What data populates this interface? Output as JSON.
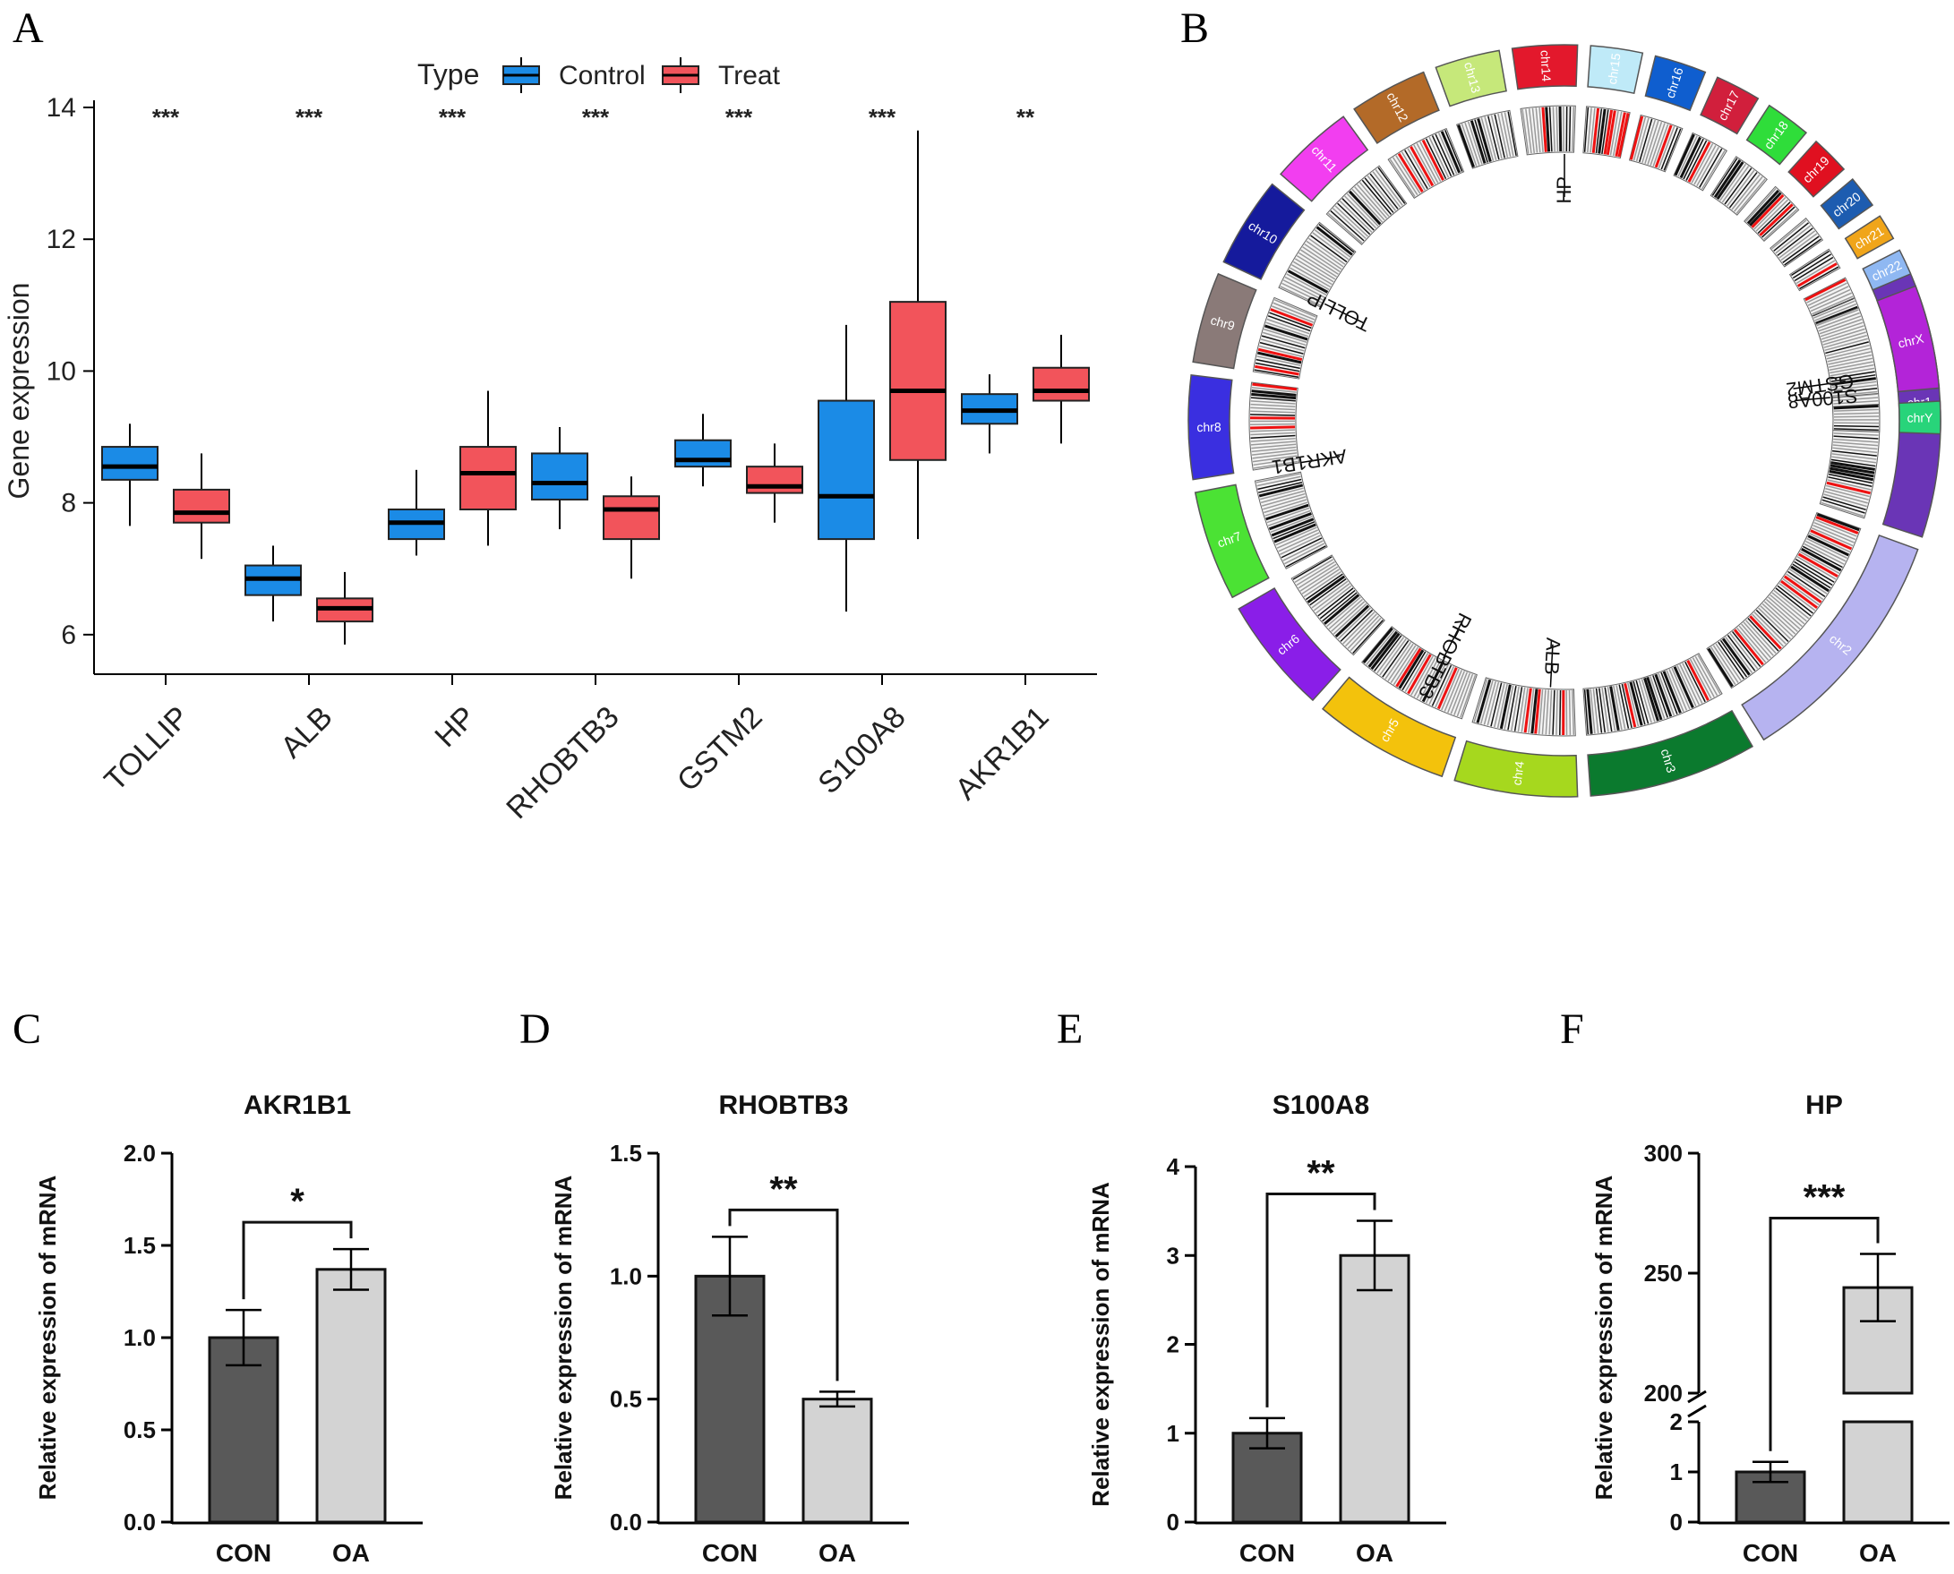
{
  "panel_labels": {
    "a": "A",
    "b": "B",
    "c": "C",
    "d": "D",
    "e": "E",
    "f": "F"
  },
  "chart_data": [
    {
      "id": "A",
      "type": "box",
      "ylabel": "Gene expression",
      "ylim": [
        5.4,
        14
      ],
      "yticks": [
        6,
        8,
        10,
        12,
        14
      ],
      "legend": {
        "title": "Type",
        "position": "top-center",
        "entries": [
          {
            "name": "Control",
            "color": "#1b8be6"
          },
          {
            "name": "Treat",
            "color": "#f2545b"
          }
        ]
      },
      "categories": [
        "TOLLIP",
        "ALB",
        "HP",
        "RHOBTB3",
        "GSTM2",
        "S100A8",
        "AKR1B1"
      ],
      "significance": [
        "***",
        "***",
        "***",
        "***",
        "***",
        "***",
        "**"
      ],
      "series": [
        {
          "name": "Control",
          "color": "#1b8be6",
          "boxes": [
            {
              "min": 7.65,
              "q1": 8.35,
              "median": 8.55,
              "q3": 8.85,
              "max": 9.2
            },
            {
              "min": 6.2,
              "q1": 6.6,
              "median": 6.85,
              "q3": 7.05,
              "max": 7.35
            },
            {
              "min": 7.2,
              "q1": 7.45,
              "median": 7.7,
              "q3": 7.9,
              "max": 8.5
            },
            {
              "min": 7.6,
              "q1": 8.05,
              "median": 8.3,
              "q3": 8.75,
              "max": 9.15
            },
            {
              "min": 8.25,
              "q1": 8.55,
              "median": 8.65,
              "q3": 8.95,
              "max": 9.35
            },
            {
              "min": 6.35,
              "q1": 7.45,
              "median": 8.1,
              "q3": 9.55,
              "max": 10.7
            },
            {
              "min": 8.75,
              "q1": 9.2,
              "median": 9.4,
              "q3": 9.65,
              "max": 9.95
            }
          ]
        },
        {
          "name": "Treat",
          "color": "#f2545b",
          "boxes": [
            {
              "min": 7.15,
              "q1": 7.7,
              "median": 7.85,
              "q3": 8.2,
              "max": 8.75
            },
            {
              "min": 5.85,
              "q1": 6.2,
              "median": 6.4,
              "q3": 6.55,
              "max": 6.95
            },
            {
              "min": 7.35,
              "q1": 7.9,
              "median": 8.45,
              "q3": 8.85,
              "max": 9.7
            },
            {
              "min": 6.85,
              "q1": 7.45,
              "median": 7.9,
              "q3": 8.1,
              "max": 8.4
            },
            {
              "min": 7.7,
              "q1": 8.15,
              "median": 8.25,
              "q3": 8.55,
              "max": 8.9
            },
            {
              "min": 7.45,
              "q1": 8.65,
              "median": 9.7,
              "q3": 11.05,
              "max": 13.65
            },
            {
              "min": 8.9,
              "q1": 9.55,
              "median": 9.7,
              "q3": 10.05,
              "max": 10.55
            }
          ]
        }
      ]
    },
    {
      "id": "B",
      "type": "circos",
      "chromosomes": [
        {
          "name": "chr1",
          "color": "#6a35b6"
        },
        {
          "name": "chr2",
          "color": "#b6b3f0"
        },
        {
          "name": "chr3",
          "color": "#0b7a2e"
        },
        {
          "name": "chr4",
          "color": "#a6d81e"
        },
        {
          "name": "chr5",
          "color": "#f3c20c"
        },
        {
          "name": "chr6",
          "color": "#8a1ee8"
        },
        {
          "name": "chr7",
          "color": "#4be234"
        },
        {
          "name": "chr8",
          "color": "#3a2fe0"
        },
        {
          "name": "chr9",
          "color": "#8a7a78"
        },
        {
          "name": "chr10",
          "color": "#151a9c"
        },
        {
          "name": "chr11",
          "color": "#f23ef0"
        },
        {
          "name": "chr12",
          "color": "#b36a28"
        },
        {
          "name": "chr13",
          "color": "#c6e87a"
        },
        {
          "name": "chr14",
          "color": "#e3182c"
        },
        {
          "name": "chr15",
          "color": "#bfeaf8"
        },
        {
          "name": "chr16",
          "color": "#0f5ecf"
        },
        {
          "name": "chr17",
          "color": "#d11f3c"
        },
        {
          "name": "chr18",
          "color": "#2fdd3a"
        },
        {
          "name": "chr19",
          "color": "#e01020"
        },
        {
          "name": "chr20",
          "color": "#1d5cb0"
        },
        {
          "name": "chr21",
          "color": "#f0a51a"
        },
        {
          "name": "chr22",
          "color": "#8fb8f2"
        },
        {
          "name": "chrX",
          "color": "#b324d8"
        },
        {
          "name": "chrY",
          "color": "#28d47a"
        }
      ],
      "genes": [
        "HP",
        "TOLLIP",
        "GSTM2",
        "S100A8",
        "AKR1B1",
        "RHOBTB3",
        "ALB"
      ]
    },
    {
      "id": "C",
      "type": "bar",
      "title": "AKR1B1",
      "ylabel": "Relative expression of mRNA",
      "categories": [
        "CON",
        "OA"
      ],
      "values": [
        1.0,
        1.37
      ],
      "errors": [
        0.15,
        0.11
      ],
      "colors": [
        "#595959",
        "#d3d3d3"
      ],
      "ylim": [
        0,
        2.0
      ],
      "yticks": [
        "0.0",
        "0.5",
        "1.0",
        "1.5",
        "2.0"
      ],
      "significance": "*"
    },
    {
      "id": "D",
      "type": "bar",
      "title": "RHOBTB3",
      "ylabel": "Relative expression of mRNA",
      "categories": [
        "CON",
        "OA"
      ],
      "values": [
        1.0,
        0.5
      ],
      "errors": [
        0.16,
        0.03
      ],
      "colors": [
        "#595959",
        "#d3d3d3"
      ],
      "ylim": [
        0,
        1.5
      ],
      "yticks": [
        "0.0",
        "0.5",
        "1.0",
        "1.5"
      ],
      "significance": "**"
    },
    {
      "id": "E",
      "type": "bar",
      "title": "S100A8",
      "ylabel": "Relative expression of mRNA",
      "categories": [
        "CON",
        "OA"
      ],
      "values": [
        1.0,
        3.0
      ],
      "errors": [
        0.17,
        0.39
      ],
      "colors": [
        "#595959",
        "#d3d3d3"
      ],
      "ylim": [
        0,
        4
      ],
      "yticks": [
        "0",
        "1",
        "2",
        "3",
        "4"
      ],
      "significance": "**"
    },
    {
      "id": "F",
      "type": "bar",
      "title": "HP",
      "ylabel": "Relative expression of mRNA",
      "categories": [
        "CON",
        "OA"
      ],
      "values": [
        1.0,
        244
      ],
      "errors": [
        0.2,
        14
      ],
      "colors": [
        "#595959",
        "#d3d3d3"
      ],
      "axis_break": {
        "lower": [
          0,
          2
        ],
        "upper": [
          200,
          300
        ]
      },
      "yticks_lower": [
        "0",
        "1",
        "2"
      ],
      "yticks_upper": [
        "200",
        "250",
        "300"
      ],
      "significance": "***"
    }
  ]
}
